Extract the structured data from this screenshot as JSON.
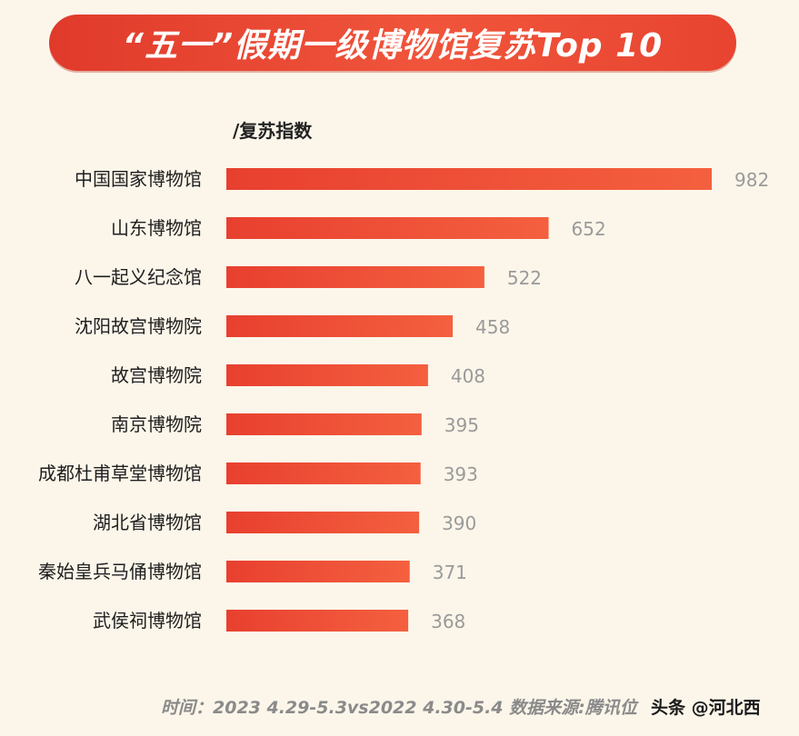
{
  "chart_data": {
    "type": "bar",
    "orientation": "horizontal",
    "title": "“五一”假期一级博物馆复苏Top 10",
    "ylabel": "/复苏指数",
    "categories": [
      "中国国家博物馆",
      "山东博物馆",
      "八一起义纪念馆",
      "沈阳故宫博物院",
      "故宫博物院",
      "南京博物院",
      "成都杜甫草堂博物馆",
      "湖北省博物馆",
      "秦始皇兵马俑博物馆",
      "武侯祠博物馆"
    ],
    "values": [
      982,
      652,
      522,
      458,
      408,
      395,
      393,
      390,
      371,
      368
    ],
    "xlim": [
      0,
      982
    ],
    "grid": false,
    "data_labels": true,
    "bar_color": "#f0503a",
    "label_color": "#9a9a9a"
  },
  "footer": {
    "note": "时间：2023 4.29-5.3vs2022 4.30-5.4  数据来源:腾讯位",
    "watermark": "头条 @河北西"
  }
}
